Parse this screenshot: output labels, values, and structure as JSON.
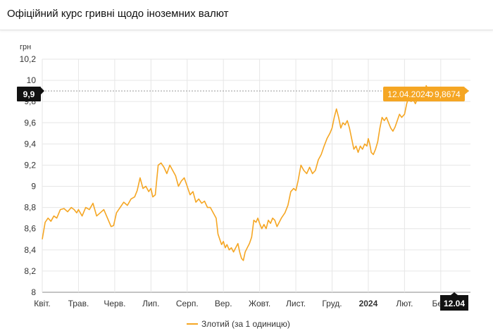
{
  "header": {
    "title": "Офіційний курс гривні щодо іноземних валют"
  },
  "chart_data": {
    "type": "line",
    "ylabel": "грн",
    "ylim": [
      8,
      10.2
    ],
    "y_ticks": [
      8,
      8.2,
      8.4,
      8.6,
      8.8,
      9,
      9.2,
      9.4,
      9.6,
      9.8,
      10,
      10.2
    ],
    "y_tick_labels": [
      "8",
      "8,2",
      "8,4",
      "8,6",
      "8,8",
      "9",
      "9,2",
      "9,4",
      "9,6",
      "9,8",
      "10",
      "10,2"
    ],
    "x_ticks": [
      {
        "label": "Квіт.",
        "t": 0,
        "bold": false
      },
      {
        "label": "Трав.",
        "t": 1,
        "bold": false
      },
      {
        "label": "Черв.",
        "t": 2,
        "bold": false
      },
      {
        "label": "Лип.",
        "t": 3,
        "bold": false
      },
      {
        "label": "Серп.",
        "t": 4,
        "bold": false
      },
      {
        "label": "Вер.",
        "t": 5,
        "bold": false
      },
      {
        "label": "Жовт.",
        "t": 6,
        "bold": false
      },
      {
        "label": "Лист.",
        "t": 7,
        "bold": false
      },
      {
        "label": "Груд.",
        "t": 8,
        "bold": false
      },
      {
        "label": "2024",
        "t": 9,
        "bold": true
      },
      {
        "label": "Лют.",
        "t": 10,
        "bold": false
      },
      {
        "label": "Бер.",
        "t": 11,
        "bold": false
      }
    ],
    "grid": true,
    "legend_position": "bottom",
    "series": [
      {
        "name": "Злотий (за 1 одиницю)",
        "color": "#f5a623",
        "points": [
          [
            0.0,
            8.5
          ],
          [
            0.08,
            8.66
          ],
          [
            0.16,
            8.7
          ],
          [
            0.24,
            8.67
          ],
          [
            0.32,
            8.72
          ],
          [
            0.4,
            8.7
          ],
          [
            0.5,
            8.78
          ],
          [
            0.6,
            8.79
          ],
          [
            0.7,
            8.76
          ],
          [
            0.8,
            8.8
          ],
          [
            0.88,
            8.78
          ],
          [
            0.95,
            8.75
          ],
          [
            1.0,
            8.78
          ],
          [
            1.1,
            8.72
          ],
          [
            1.2,
            8.8
          ],
          [
            1.3,
            8.78
          ],
          [
            1.4,
            8.84
          ],
          [
            1.5,
            8.72
          ],
          [
            1.6,
            8.75
          ],
          [
            1.7,
            8.78
          ],
          [
            1.8,
            8.7
          ],
          [
            1.9,
            8.62
          ],
          [
            1.97,
            8.63
          ],
          [
            2.05,
            8.75
          ],
          [
            2.15,
            8.8
          ],
          [
            2.25,
            8.85
          ],
          [
            2.35,
            8.82
          ],
          [
            2.45,
            8.88
          ],
          [
            2.55,
            8.9
          ],
          [
            2.62,
            8.96
          ],
          [
            2.7,
            9.08
          ],
          [
            2.78,
            8.98
          ],
          [
            2.86,
            9.0
          ],
          [
            2.94,
            8.95
          ],
          [
            3.0,
            8.98
          ],
          [
            3.05,
            8.9
          ],
          [
            3.12,
            8.92
          ],
          [
            3.2,
            9.2
          ],
          [
            3.28,
            9.22
          ],
          [
            3.36,
            9.18
          ],
          [
            3.44,
            9.12
          ],
          [
            3.52,
            9.2
          ],
          [
            3.6,
            9.15
          ],
          [
            3.68,
            9.1
          ],
          [
            3.76,
            9.0
          ],
          [
            3.84,
            9.05
          ],
          [
            3.92,
            9.08
          ],
          [
            4.0,
            9.0
          ],
          [
            4.08,
            8.92
          ],
          [
            4.16,
            8.95
          ],
          [
            4.24,
            8.85
          ],
          [
            4.32,
            8.88
          ],
          [
            4.4,
            8.84
          ],
          [
            4.48,
            8.86
          ],
          [
            4.56,
            8.8
          ],
          [
            4.64,
            8.8
          ],
          [
            4.72,
            8.75
          ],
          [
            4.8,
            8.7
          ],
          [
            4.85,
            8.55
          ],
          [
            4.9,
            8.5
          ],
          [
            4.95,
            8.45
          ],
          [
            5.0,
            8.48
          ],
          [
            5.05,
            8.42
          ],
          [
            5.1,
            8.45
          ],
          [
            5.16,
            8.4
          ],
          [
            5.22,
            8.42
          ],
          [
            5.28,
            8.38
          ],
          [
            5.34,
            8.42
          ],
          [
            5.4,
            8.46
          ],
          [
            5.45,
            8.38
          ],
          [
            5.5,
            8.32
          ],
          [
            5.55,
            8.3
          ],
          [
            5.6,
            8.38
          ],
          [
            5.66,
            8.42
          ],
          [
            5.72,
            8.46
          ],
          [
            5.78,
            8.52
          ],
          [
            5.84,
            8.68
          ],
          [
            5.9,
            8.66
          ],
          [
            5.95,
            8.7
          ],
          [
            6.0,
            8.65
          ],
          [
            6.06,
            8.6
          ],
          [
            6.12,
            8.64
          ],
          [
            6.18,
            8.6
          ],
          [
            6.24,
            8.68
          ],
          [
            6.3,
            8.65
          ],
          [
            6.36,
            8.7
          ],
          [
            6.42,
            8.68
          ],
          [
            6.48,
            8.62
          ],
          [
            6.54,
            8.66
          ],
          [
            6.6,
            8.7
          ],
          [
            6.7,
            8.75
          ],
          [
            6.78,
            8.82
          ],
          [
            6.86,
            8.95
          ],
          [
            6.94,
            8.98
          ],
          [
            7.0,
            8.96
          ],
          [
            7.06,
            9.05
          ],
          [
            7.14,
            9.2
          ],
          [
            7.22,
            9.15
          ],
          [
            7.3,
            9.12
          ],
          [
            7.38,
            9.18
          ],
          [
            7.46,
            9.12
          ],
          [
            7.54,
            9.15
          ],
          [
            7.62,
            9.25
          ],
          [
            7.7,
            9.3
          ],
          [
            7.78,
            9.38
          ],
          [
            7.86,
            9.45
          ],
          [
            7.94,
            9.5
          ],
          [
            8.0,
            9.55
          ],
          [
            8.06,
            9.65
          ],
          [
            8.12,
            9.73
          ],
          [
            8.18,
            9.65
          ],
          [
            8.24,
            9.55
          ],
          [
            8.3,
            9.6
          ],
          [
            8.36,
            9.58
          ],
          [
            8.42,
            9.62
          ],
          [
            8.48,
            9.55
          ],
          [
            8.54,
            9.45
          ],
          [
            8.6,
            9.35
          ],
          [
            8.66,
            9.38
          ],
          [
            8.72,
            9.32
          ],
          [
            8.78,
            9.38
          ],
          [
            8.84,
            9.35
          ],
          [
            8.9,
            9.4
          ],
          [
            8.96,
            9.38
          ],
          [
            9.0,
            9.45
          ],
          [
            9.04,
            9.4
          ],
          [
            9.08,
            9.32
          ],
          [
            9.14,
            9.3
          ],
          [
            9.2,
            9.35
          ],
          [
            9.26,
            9.42
          ],
          [
            9.32,
            9.55
          ],
          [
            9.38,
            9.65
          ],
          [
            9.44,
            9.62
          ],
          [
            9.5,
            9.65
          ],
          [
            9.56,
            9.6
          ],
          [
            9.62,
            9.55
          ],
          [
            9.68,
            9.52
          ],
          [
            9.74,
            9.56
          ],
          [
            9.8,
            9.62
          ],
          [
            9.86,
            9.68
          ],
          [
            9.92,
            9.65
          ],
          [
            10.0,
            9.68
          ],
          [
            10.06,
            9.78
          ],
          [
            10.12,
            9.85
          ],
          [
            10.18,
            9.8
          ],
          [
            10.24,
            9.82
          ],
          [
            10.3,
            9.78
          ],
          [
            10.36,
            9.83
          ],
          [
            10.42,
            9.82
          ],
          [
            10.48,
            9.86
          ],
          [
            10.54,
            9.85
          ],
          [
            10.6,
            9.95
          ],
          [
            10.66,
            9.9
          ],
          [
            10.72,
            9.87
          ]
        ]
      }
    ],
    "crosshair": {
      "value_label": "9,9"
    },
    "tooltip": {
      "text": "12.04.2024: 9,8674"
    },
    "current_date_badge": "12.04"
  }
}
